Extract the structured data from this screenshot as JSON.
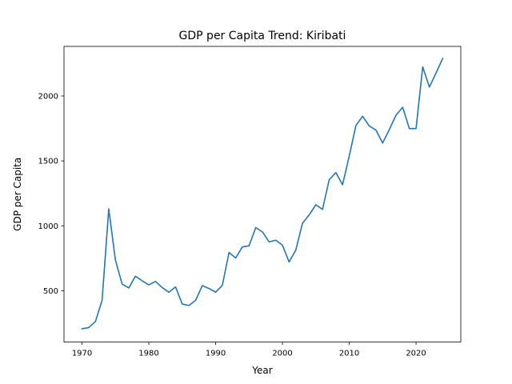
{
  "chart_data": {
    "type": "line",
    "title": "GDP per Capita Trend: Kiribati",
    "xlabel": "Year",
    "ylabel": "GDP per Capita",
    "xlim": [
      1967.3,
      2026.7
    ],
    "ylim": [
      104,
      2382
    ],
    "xticks": [
      1970,
      1980,
      1990,
      2000,
      2010,
      2020
    ],
    "yticks": [
      500,
      1000,
      1500,
      2000
    ],
    "grid": false,
    "series": [
      {
        "color": "#1f77b4",
        "x": [
          1970,
          1971,
          1972,
          1973,
          1974,
          1975,
          1976,
          1977,
          1978,
          1979,
          1980,
          1981,
          1982,
          1983,
          1984,
          1985,
          1986,
          1987,
          1988,
          1989,
          1990,
          1991,
          1992,
          1993,
          1994,
          1995,
          1996,
          1997,
          1998,
          1999,
          2000,
          2001,
          2002,
          2003,
          2004,
          2005,
          2006,
          2007,
          2008,
          2009,
          2010,
          2011,
          2012,
          2013,
          2014,
          2015,
          2016,
          2017,
          2018,
          2019,
          2020,
          2021,
          2022,
          2023,
          2024
        ],
        "y": [
          207,
          216,
          262,
          425,
          1130,
          735,
          551,
          521,
          612,
          576,
          545,
          571,
          524,
          488,
          529,
          397,
          386,
          425,
          539,
          517,
          489,
          540,
          794,
          752,
          837,
          846,
          986,
          953,
          876,
          889,
          851,
          721,
          813,
          1020,
          1083,
          1162,
          1126,
          1355,
          1410,
          1316,
          1537,
          1773,
          1844,
          1769,
          1737,
          1638,
          1741,
          1852,
          1913,
          1749,
          1749,
          2224,
          2069,
          2178,
          2290
        ]
      }
    ]
  }
}
